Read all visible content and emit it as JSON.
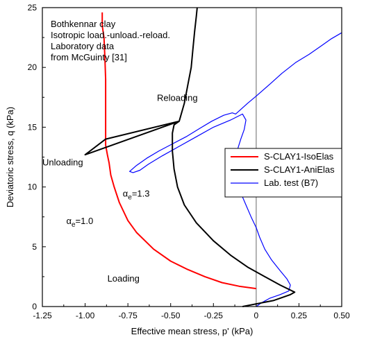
{
  "chart_data": {
    "type": "line",
    "title": "",
    "xlabel": "Effective mean stress, p' (kPa)",
    "ylabel": "Deviatoric stress, q (kPa)",
    "xlim": [
      -1.25,
      0.5
    ],
    "ylim": [
      0,
      25
    ],
    "x_ticks": [
      "-1.25",
      "-1.00",
      "-0.75",
      "-0.50",
      "-0.25",
      "0",
      "0.25",
      "0.50"
    ],
    "y_ticks": [
      "0",
      "5",
      "10",
      "15",
      "20",
      "25"
    ],
    "x_tick_values": [
      -1.25,
      -1.0,
      -0.75,
      -0.5,
      -0.25,
      0,
      0.25,
      0.5
    ],
    "y_tick_values": [
      0,
      5,
      10,
      15,
      20,
      25
    ],
    "grid": false,
    "reference_line_x": 0,
    "legend_position": "right",
    "info_lines": [
      "Bothkennar clay",
      "Isotropic load.-unload.-reload.",
      "Laboratory data",
      "from McGuinty [31]"
    ],
    "annotations": [
      {
        "text": "Reloading",
        "x": -0.58,
        "y": 17.2
      },
      {
        "text": "Unloading",
        "x": -1.25,
        "y": 11.8
      },
      {
        "text": "Loading",
        "x": -0.87,
        "y": 2.1
      }
    ],
    "alpha_labels": [
      {
        "greek": "α",
        "sub": "e",
        "rest": "=1.3",
        "x": -0.78,
        "y": 9.2
      },
      {
        "greek": "α",
        "sub": "e",
        "rest": "=1.0",
        "x": -1.11,
        "y": 6.9
      }
    ],
    "series": [
      {
        "name": "S-CLAY1-IsoElas",
        "color": "#ff0000",
        "x": [
          0,
          -0.1,
          -0.2,
          -0.3,
          -0.4,
          -0.5,
          -0.6,
          -0.7,
          -0.75,
          -0.8,
          -0.83,
          -0.85,
          -0.86,
          -0.87,
          -0.88,
          -0.88,
          -0.88,
          -0.88,
          -0.885,
          -0.89,
          -0.9,
          -0.9
        ],
        "y": [
          1.5,
          1.7,
          2.0,
          2.5,
          3.1,
          3.8,
          4.8,
          6.2,
          7.2,
          8.7,
          10.0,
          11.0,
          12.0,
          12.7,
          13.5,
          15.0,
          17.0,
          19.0,
          21.0,
          22.5,
          23.5,
          24.6
        ]
      },
      {
        "name": "S-CLAY1-AniElas",
        "color": "#000000",
        "x": [
          -0.08,
          0.1,
          0.2,
          0.225,
          0.14,
          0.05,
          -0.05,
          -0.15,
          -0.25,
          -0.35,
          -0.42,
          -0.46,
          -0.48,
          -0.49,
          -0.49,
          -0.48,
          -0.45,
          -0.88,
          -1.0,
          -0.45,
          -0.42,
          -0.4,
          -0.38,
          -0.37,
          -0.36,
          -0.35,
          -0.345
        ],
        "y": [
          0,
          0.5,
          1.0,
          1.2,
          1.8,
          2.5,
          3.3,
          4.3,
          5.5,
          7.0,
          8.5,
          10.0,
          11.5,
          13.0,
          14.5,
          15.2,
          15.5,
          14.0,
          12.7,
          15.5,
          17.0,
          18.5,
          20.0,
          21.5,
          23.0,
          24.3,
          25.0
        ]
      },
      {
        "name": "Lab. test (B7)",
        "color": "#0000ff",
        "x": [
          0,
          0.03,
          0.08,
          0.14,
          0.19,
          0.2,
          0.18,
          0.14,
          0.09,
          0.05,
          0.02,
          0.0,
          -0.03,
          -0.06,
          -0.09,
          -0.11,
          -0.12,
          -0.12,
          -0.11,
          -0.09,
          -0.07,
          -0.06,
          -0.08,
          -0.15,
          -0.25,
          -0.35,
          -0.45,
          -0.55,
          -0.63,
          -0.68,
          -0.72,
          -0.74,
          -0.7,
          -0.64,
          -0.57,
          -0.49,
          -0.41,
          -0.33,
          -0.26,
          -0.19,
          -0.14,
          -0.12,
          -0.05,
          0.0,
          0.08,
          0.15,
          0.23,
          0.31,
          0.38,
          0.44,
          0.5
        ],
        "y": [
          0,
          0.3,
          0.7,
          1.0,
          1.3,
          1.8,
          2.3,
          3.0,
          3.9,
          4.8,
          5.8,
          6.6,
          7.5,
          8.5,
          9.5,
          10.5,
          11.5,
          12.3,
          13.1,
          14.0,
          14.8,
          15.6,
          16.1,
          15.6,
          15.0,
          14.2,
          13.4,
          12.6,
          11.9,
          11.4,
          11.2,
          11.3,
          11.8,
          12.4,
          13.0,
          13.6,
          14.2,
          14.9,
          15.5,
          16.0,
          16.2,
          16.1,
          17.0,
          17.6,
          18.6,
          19.5,
          20.4,
          21.1,
          21.8,
          22.4,
          22.9
        ]
      }
    ]
  }
}
